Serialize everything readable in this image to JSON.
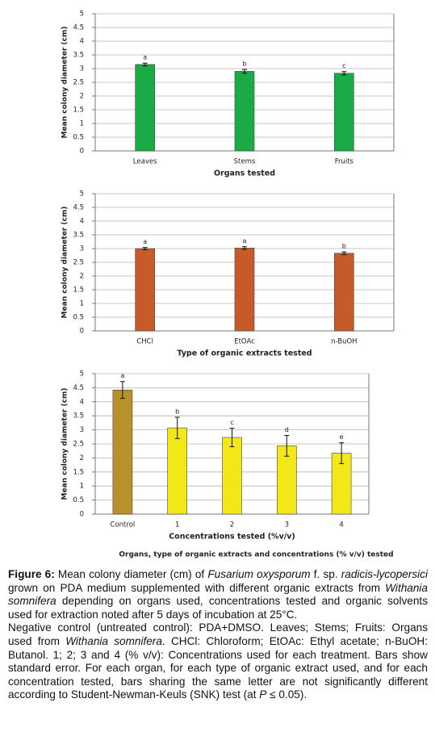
{
  "chart_data": [
    {
      "type": "bar",
      "ylabel": "Mean colony diameter (cm)",
      "xlabel": "Organs tested",
      "categories": [
        "Leaves",
        "Stems",
        "Fruits"
      ],
      "values": [
        3.15,
        2.9,
        2.83
      ],
      "errors": [
        0.05,
        0.07,
        0.06
      ],
      "annotations": [
        "a",
        "b",
        "c"
      ],
      "colors": [
        "#1aaa46",
        "#1aaa46",
        "#1aaa46"
      ],
      "ylim": [
        0,
        5
      ],
      "yticks": [
        0,
        0.5,
        1,
        1.5,
        2,
        2.5,
        3,
        3.5,
        4,
        4.5,
        5
      ],
      "grid": true
    },
    {
      "type": "bar",
      "ylabel": "Mean colony diameter (cm)",
      "xlabel": "Type of organic extracts tested",
      "categories": [
        "CHCl",
        "EtOAc",
        "n-BuOH"
      ],
      "values": [
        3.0,
        3.02,
        2.83
      ],
      "errors": [
        0.04,
        0.05,
        0.05
      ],
      "annotations": [
        "a",
        "a",
        "b"
      ],
      "colors": [
        "#c65a29",
        "#c65a29",
        "#c65a29"
      ],
      "ylim": [
        0,
        5
      ],
      "yticks": [
        0,
        0.5,
        1,
        1.5,
        2,
        2.5,
        3,
        3.5,
        4,
        4.5,
        5
      ],
      "grid": true
    },
    {
      "type": "bar",
      "ylabel": "Mean colony diameter (cm)",
      "xlabel": "Concentrations tested (%v/v)",
      "note": "Organs, type of organic extracts  and concentrations (% v/v) tested",
      "categories": [
        "Control",
        "1",
        "2",
        "3",
        "4"
      ],
      "values": [
        4.42,
        3.07,
        2.73,
        2.43,
        2.17
      ],
      "errors": [
        0.3,
        0.38,
        0.33,
        0.37,
        0.37
      ],
      "annotations": [
        "a",
        "b",
        "c",
        "d",
        "e"
      ],
      "colors": [
        "#b8912d",
        "#f3e817",
        "#f3e817",
        "#f3e817",
        "#f3e817"
      ],
      "ylim": [
        0,
        5
      ],
      "yticks": [
        0,
        0.5,
        1,
        1.5,
        2,
        2.5,
        3,
        3.5,
        4,
        4.5,
        5
      ],
      "grid": true
    }
  ],
  "caption": {
    "paragraphs": [
      [
        {
          "b": "Figure 6:"
        },
        " Mean colony diameter (cm) of ",
        {
          "i": "Fusarium oxysporum"
        },
        " f. sp. ",
        {
          "i": "radicis-lycopersici"
        },
        " grown on PDA medium supplemented with different organic extracts from ",
        {
          "i": "Withania somnifera"
        },
        " depending on organs used, concentrations tested and organic solvents used for extraction noted after 5 days of incubation at 25°C."
      ],
      [
        "Negative control (untreated control): PDA+DMSO. Leaves; Stems; Fruits: Organs used from ",
        {
          "i": "Withania somnifera"
        },
        ". CHCl: Chloroform; EtOAc: Ethyl acetate; n-BuOH: Butanol. 1; 2; 3 and 4 (% v/v): Concentrations used for each treatment. Bars show standard error. For each organ, for each type of organic extract used, and for each concentration tested, bars sharing the same letter are not significantly different according to Student-Newman-Keuls (SNK) test (at ",
        {
          "i": "P"
        },
        " ≤ 0.05)."
      ]
    ]
  }
}
